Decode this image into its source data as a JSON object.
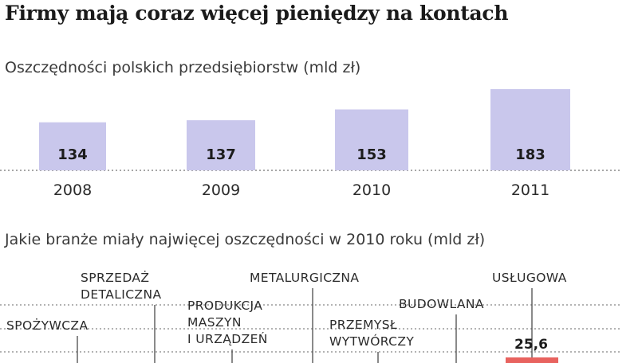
{
  "chart_data": [
    {
      "type": "bar",
      "title": "Firmy mają coraz więcej pieniędzy na kontach",
      "subtitle": "Oszczędności polskich przedsiębiorstw (mld zł)",
      "categories": [
        "2008",
        "2009",
        "2010",
        "2011"
      ],
      "values": [
        134,
        137,
        153,
        183
      ],
      "value_labels": [
        "134",
        "137",
        "153",
        "183"
      ],
      "bar_color": "#c9c7ec",
      "grid": false
    },
    {
      "type": "bar",
      "subtitle": "Jakie branże miały najwięcej oszczędności w 2010 roku (mld zł)",
      "categories": [
        [
          "SPOŻYWCZA"
        ],
        [
          "SPRZEDAŻ",
          "DETALICZNA"
        ],
        [
          "PRODUKCJA",
          "MASZYN",
          "I URZĄDZEŃ"
        ],
        [
          "METALURGICZNA"
        ],
        [
          "PRZEMYSŁ",
          "WYTWÓRCZY"
        ],
        [
          "BUDOWLANA"
        ],
        [
          "USŁUGOWA"
        ]
      ],
      "visible_values": {
        "USŁUGOWA": "25,6"
      },
      "bar_color": "#e8635f"
    }
  ]
}
